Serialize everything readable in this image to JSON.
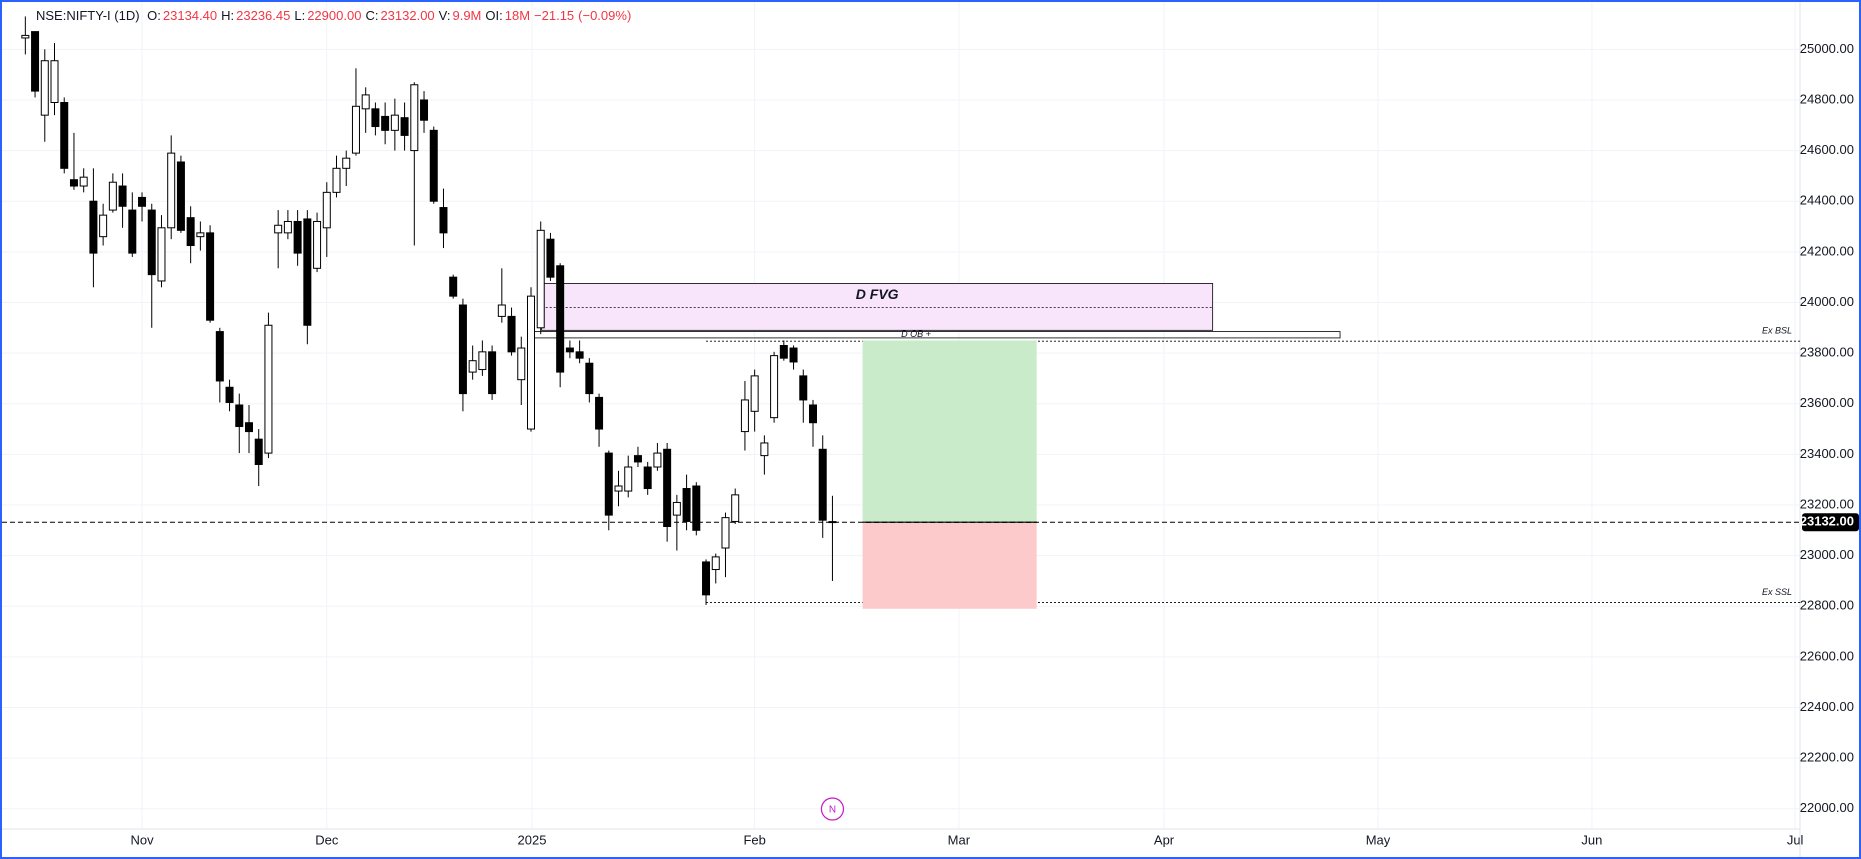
{
  "chart_data": {
    "type": "candlestick",
    "header": {
      "symbol": "NSE:NIFTY-I (1D)",
      "fields": [
        {
          "label": "O:",
          "value": "23134.40"
        },
        {
          "label": "H:",
          "value": "23236.45"
        },
        {
          "label": "L:",
          "value": "22900.00"
        },
        {
          "label": "C:",
          "value": "23132.00"
        },
        {
          "label": "V:",
          "value": "9.9M"
        },
        {
          "label": "OI:",
          "value": "18M"
        }
      ],
      "change": "−21.15",
      "change_pct": "(−0.09%)",
      "value_color": "#f23645"
    },
    "x": [
      0,
      1,
      2,
      3,
      4,
      5,
      6,
      7,
      8,
      9,
      10,
      11,
      12,
      13,
      14,
      15,
      16,
      17,
      18,
      19,
      20,
      21,
      22,
      23,
      24,
      25,
      26,
      27,
      28,
      29,
      30,
      31,
      32,
      33,
      34,
      35,
      36,
      37,
      38,
      39,
      40,
      41,
      42,
      43,
      44,
      45,
      46,
      47,
      48,
      49,
      50,
      51,
      52,
      53,
      54,
      55,
      56,
      57,
      58,
      59,
      60,
      61,
      62,
      63,
      64,
      65,
      66,
      67,
      68,
      69,
      70,
      71,
      72,
      73,
      74,
      75,
      76,
      77,
      78,
      79,
      80,
      81,
      82,
      83
    ],
    "open": [
      25045,
      25070,
      24740,
      24790,
      24790,
      24485,
      24460,
      24400,
      24260,
      24365,
      24460,
      24365,
      24415,
      24365,
      24085,
      24295,
      24555,
      24335,
      24260,
      24275,
      23885,
      23665,
      23595,
      23525,
      23460,
      23405,
      24275,
      24275,
      24320,
      24330,
      24135,
      24295,
      24435,
      24530,
      24590,
      24765,
      24765,
      24735,
      24680,
      24730,
      24600,
      24800,
      24680,
      24375,
      24100,
      23990,
      23725,
      23735,
      23805,
      23945,
      23945,
      23695,
      23500,
      23900,
      24250,
      24145,
      23820,
      23805,
      23760,
      23625,
      23405,
      23255,
      23255,
      23395,
      23350,
      23350,
      23420,
      23160,
      23265,
      23275,
      22975,
      22945,
      23030,
      23135,
      23490,
      23570,
      23395,
      23545,
      23830,
      23820,
      23710,
      23595,
      23420,
      23134.4
    ],
    "high": [
      25130,
      25070,
      25000,
      25025,
      24810,
      24670,
      24530,
      24530,
      24390,
      24510,
      24510,
      24435,
      24435,
      24390,
      24345,
      24660,
      24580,
      24380,
      24320,
      24305,
      23900,
      23695,
      23640,
      23595,
      23500,
      23960,
      24365,
      24365,
      24365,
      24365,
      24355,
      24475,
      24580,
      24600,
      24925,
      24850,
      24790,
      24790,
      24805,
      24790,
      24870,
      24835,
      24695,
      24450,
      24110,
      24015,
      23830,
      23850,
      23830,
      24135,
      23980,
      23865,
      24060,
      24320,
      24275,
      24155,
      23850,
      23850,
      23780,
      23640,
      23415,
      23335,
      23395,
      23430,
      23370,
      23445,
      23445,
      23240,
      23320,
      23290,
      22985,
      23008,
      23170,
      23265,
      23690,
      23735,
      23475,
      23805,
      23850,
      23830,
      23735,
      23615,
      23475,
      23236.45
    ],
    "low": [
      24980,
      24810,
      24635,
      24740,
      24510,
      24445,
      24435,
      24060,
      24225,
      24355,
      24295,
      24180,
      24320,
      23900,
      24060,
      24250,
      24275,
      24155,
      24205,
      23920,
      23605,
      23570,
      23405,
      23405,
      23275,
      23385,
      24135,
      24250,
      24145,
      23835,
      24120,
      24180,
      24415,
      24460,
      24580,
      24670,
      24660,
      24625,
      24600,
      24600,
      24225,
      24670,
      24390,
      24215,
      24015,
      23570,
      23695,
      23710,
      23615,
      23920,
      23790,
      23595,
      23490,
      23875,
      24085,
      23665,
      23780,
      23760,
      23605,
      23430,
      23100,
      23195,
      23230,
      23350,
      23240,
      23335,
      23055,
      23020,
      23100,
      23080,
      22805,
      22890,
      22915,
      23125,
      23415,
      23490,
      23320,
      23525,
      23770,
      23735,
      23525,
      23430,
      23070,
      22900
    ],
    "close": [
      25055,
      24835,
      24955,
      24955,
      24530,
      24460,
      24495,
      24195,
      24345,
      24475,
      24380,
      24195,
      24380,
      24110,
      24295,
      24590,
      24285,
      24225,
      24275,
      23930,
      23690,
      23605,
      23510,
      23490,
      23360,
      23910,
      24305,
      24320,
      24195,
      23910,
      24320,
      24435,
      24530,
      24570,
      24775,
      24820,
      24695,
      24680,
      24740,
      24660,
      24860,
      24720,
      24400,
      24275,
      24025,
      23640,
      23770,
      23805,
      23640,
      23990,
      23805,
      23820,
      24025,
      24285,
      24100,
      23725,
      23805,
      23780,
      23640,
      23500,
      23160,
      23275,
      23350,
      23370,
      23265,
      23405,
      23115,
      23210,
      23135,
      23100,
      22845,
      22995,
      23150,
      23240,
      23615,
      23710,
      23445,
      23790,
      23780,
      23765,
      23615,
      23525,
      23140,
      23132
    ],
    "up_color": "#ffffff",
    "down_color": "#000000",
    "grid_color": "#f0f3fa",
    "xlim": [
      -2.4,
      182.5
    ],
    "xticks": [
      {
        "value": 12,
        "label": "Nov"
      },
      {
        "value": 31,
        "label": "Dec"
      },
      {
        "value": 52.1,
        "label": "2025"
      },
      {
        "value": 75,
        "label": "Feb"
      },
      {
        "value": 96,
        "label": "Mar"
      },
      {
        "value": 117.1,
        "label": "Apr"
      },
      {
        "value": 139.1,
        "label": "May"
      },
      {
        "value": 161.1,
        "label": "Jun"
      },
      {
        "value": 182,
        "label": "Jul"
      }
    ],
    "ylim": [
      21920,
      25187
    ],
    "yticks": [
      {
        "value": 22000,
        "label": "22000.00"
      },
      {
        "value": 22200,
        "label": "22200.00"
      },
      {
        "value": 22400,
        "label": "22400.00"
      },
      {
        "value": 22600,
        "label": "22600.00"
      },
      {
        "value": 22800,
        "label": "22800.00"
      },
      {
        "value": 23000,
        "label": "23000.00"
      },
      {
        "value": 23200,
        "label": "23200.00"
      },
      {
        "value": 23400,
        "label": "23400.00"
      },
      {
        "value": 23600,
        "label": "23600.00"
      },
      {
        "value": 23800,
        "label": "23800.00"
      },
      {
        "value": 24000,
        "label": "24000.00"
      },
      {
        "value": 24200,
        "label": "24200.00"
      },
      {
        "value": 24400,
        "label": "24400.00"
      },
      {
        "value": 24600,
        "label": "24600.00"
      },
      {
        "value": 24800,
        "label": "24800.00"
      },
      {
        "value": 25000,
        "label": "25000.00"
      }
    ],
    "grid": true,
    "fvg": {
      "label": "D FVG",
      "x0": 53.1,
      "x1": 122.1,
      "low": 23890,
      "high": 24075,
      "mid": 23980,
      "color": "#f8e5fb"
    },
    "ob": {
      "label": "D OB +",
      "x0": 52.1,
      "x1": 135.2,
      "low": 23860,
      "high": 23885
    },
    "levels": [
      {
        "label": "Ex BSL",
        "x0": 70,
        "y": 23847
      },
      {
        "label": "Ex SSL",
        "x0": 70,
        "y": 22815
      }
    ],
    "position": {
      "x0": 86.1,
      "x1": 104,
      "target": 23850,
      "entry": 23132,
      "stop": 22790,
      "profit_color": "#c9ebca",
      "loss_color": "#fdcacb"
    },
    "last_price": {
      "value": 23132,
      "label": "23132.00"
    },
    "event": {
      "label": "N",
      "x": 83,
      "color": "#c418c8"
    }
  }
}
